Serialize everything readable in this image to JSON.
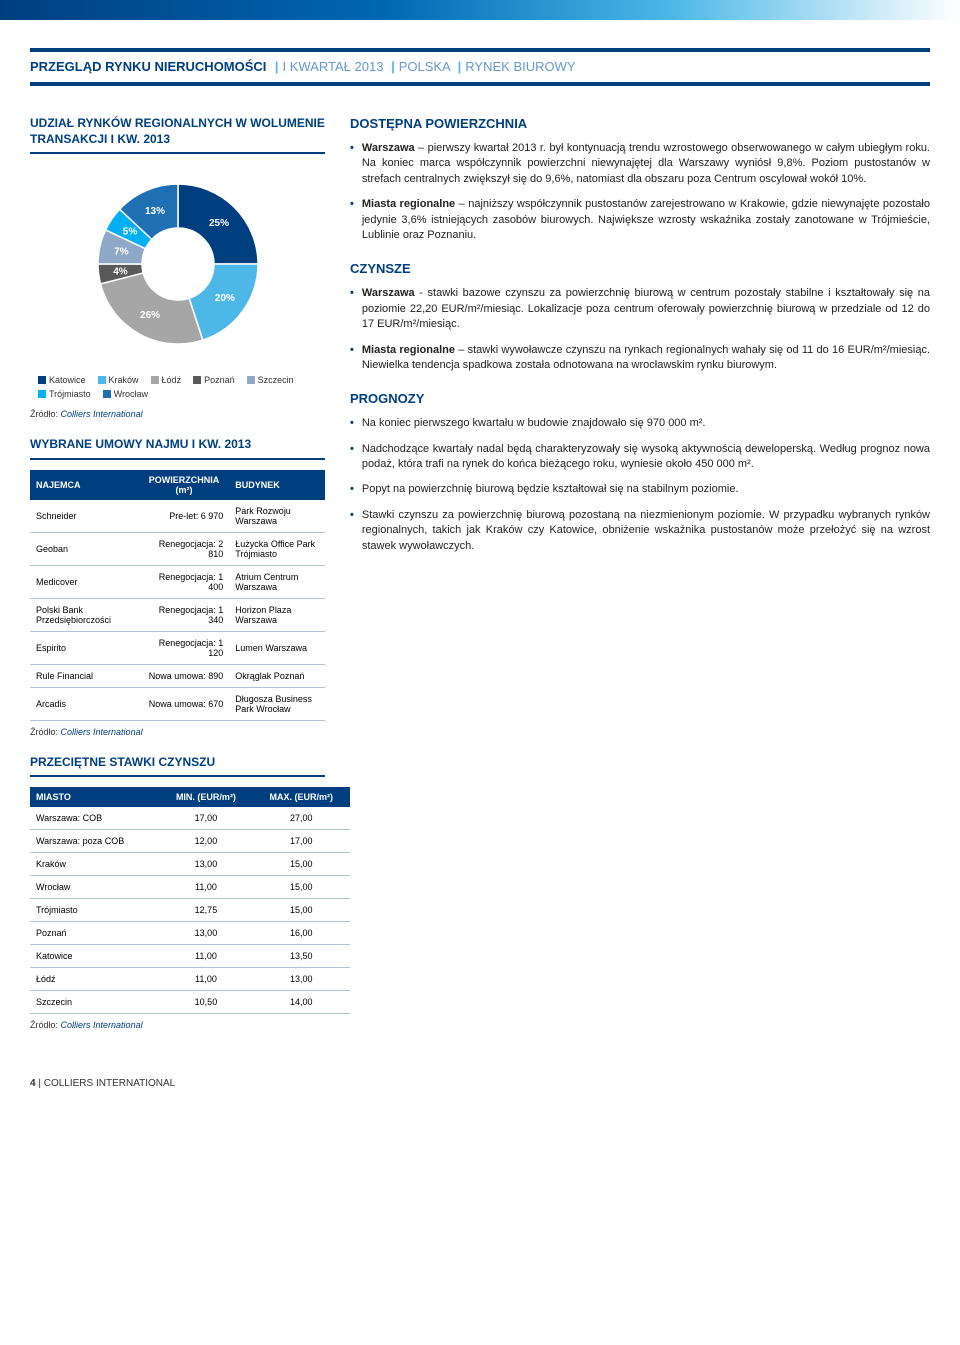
{
  "header": {
    "main": "PRZEGLĄD RYNKU NIERUCHOMOŚCI",
    "parts": [
      "I KWARTAŁ 2013",
      "POLSKA",
      "RYNEK BIUROWY"
    ]
  },
  "donut": {
    "title": "UDZIAŁ RYNKÓW REGIONALNYCH W WOLUMENIE TRANSAKCJI I KW. 2013",
    "categories": [
      "Katowice",
      "Kraków",
      "Łódź",
      "Poznań",
      "Szczecin",
      "Trójmiasto",
      "Wrocław"
    ],
    "values": [
      25,
      20,
      26,
      4,
      7,
      5,
      13
    ],
    "colors": [
      "#003f7f",
      "#4db8e8",
      "#a6a6a6",
      "#595959",
      "#8fa8c8",
      "#00b0f0",
      "#1f6fb5"
    ],
    "inner_ratio": 0.45,
    "label_color": "#ffffff",
    "label_fontsize": 10,
    "background": "#ffffff"
  },
  "source_label": "Źródło:",
  "source_text": "Colliers International",
  "lease_table": {
    "title": "WYBRANE UMOWY NAJMU I KW. 2013",
    "columns": [
      "NAJEMCA",
      "POWIERZCHNIA (m²)",
      "BUDYNEK"
    ],
    "rows": [
      [
        "Schneider",
        "Pre-let: 6 970",
        "Park Rozwoju Warszawa"
      ],
      [
        "Geoban",
        "Renegocjacja: 2 810",
        "Łużycka Office Park Trójmiasto"
      ],
      [
        "Medicover",
        "Renegocjacja: 1 400",
        "Atrium Centrum Warszawa"
      ],
      [
        "Polski Bank Przedsiębiorczości",
        "Renegocjacja: 1 340",
        "Horizon Plaza Warszawa"
      ],
      [
        "Espirito",
        "Renegocjacja: 1 120",
        "Lumen Warszawa"
      ],
      [
        "Rule Financial",
        "Nowa umowa: 890",
        "Okrąglak Poznań"
      ],
      [
        "Arcadis",
        "Nowa umowa: 670",
        "Długosza Business Park Wrocław"
      ]
    ]
  },
  "rates_table": {
    "title": "PRZECIĘTNE STAWKI CZYNSZU",
    "columns": [
      "MIASTO",
      "MIN. (EUR/m²)",
      "MAX. (EUR/m²)"
    ],
    "rows": [
      [
        "Warszawa: COB",
        "17,00",
        "27,00"
      ],
      [
        "Warszawa: poza COB",
        "12,00",
        "17,00"
      ],
      [
        "Kraków",
        "13,00",
        "15,00"
      ],
      [
        "Wrocław",
        "11,00",
        "15,00"
      ],
      [
        "Trójmiasto",
        "12,75",
        "15,00"
      ],
      [
        "Poznań",
        "13,00",
        "16,00"
      ],
      [
        "Katowice",
        "11,00",
        "13,50"
      ],
      [
        "Łódź",
        "11,00",
        "13,00"
      ],
      [
        "Szczecin",
        "10,50",
        "14,00"
      ]
    ]
  },
  "sections": {
    "s1": {
      "title": "DOSTĘPNA POWIERZCHNIA",
      "b1_bold": "Warszawa",
      "b1_rest": " – pierwszy kwartał 2013 r. był kontynuacją trendu wzrostowego obserwowanego w całym ubiegłym roku. Na koniec marca współczynnik powierzchni niewynajętej dla Warszawy wyniósł 9,8%. Poziom pustostanów w strefach centralnych zwiększył się do 9,6%, natomiast dla obszaru poza Centrum oscylował wokół 10%.",
      "b2_bold": "Miasta regionalne",
      "b2_rest": " – najniższy współczynnik pustostanów zarejestrowano w Krakowie, gdzie niewynajęte pozostało jedynie 3,6% istniejących zasobów biurowych. Największe wzrosty wskaźnika zostały zanotowane w Trójmieście, Lublinie oraz Poznaniu."
    },
    "s2": {
      "title": "CZYNSZE",
      "b1_bold": "Warszawa",
      "b1_rest": " - stawki bazowe czynszu za powierzchnię biurową w centrum pozostały stabilne i kształtowały się na poziomie 22,20 EUR/m²/miesiąc. Lokalizacje poza centrum oferowały powierzchnię biurową w przedziale od 12 do 17 EUR/m²/miesiąc.",
      "b2_bold": "Miasta regionalne",
      "b2_rest": " – stawki wywoławcze czynszu na rynkach regionalnych wahały się od 11 do 16 EUR/m²/miesiąc. Niewielka tendencja spadkowa została odnotowana na wrocławskim rynku biurowym."
    },
    "s3": {
      "title": "PROGNOZY",
      "b1": "Na koniec pierwszego kwartału w budowie znajdowało się 970 000 m².",
      "b2": "Nadchodzące kwartały nadal będą charakteryzowały się wysoką aktywnością deweloperską. Według prognoz nowa podaż, która trafi na rynek do końca bieżącego roku, wyniesie około 450 000 m².",
      "b3": "Popyt na powierzchnię biurową będzie kształtował się na stabilnym poziomie.",
      "b4": "Stawki czynszu za powierzchnię biurową pozostaną na niezmienionym poziomie. W przypadku wybranych rynków regionalnych, takich jak Kraków czy Katowice, obniżenie wskaźnika pustostanów może przełożyć się na wzrost stawek wywoławczych."
    }
  },
  "footer": {
    "page": "4",
    "sep": "|",
    "brand": "COLLIERS INTERNATIONAL"
  }
}
